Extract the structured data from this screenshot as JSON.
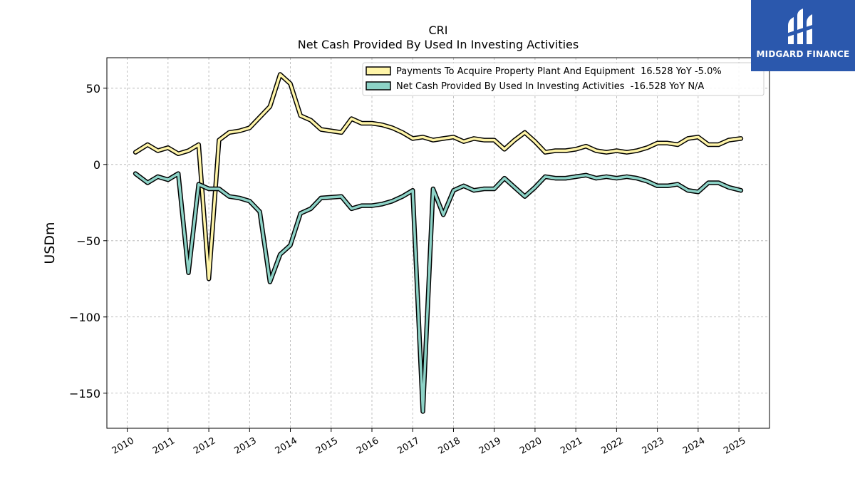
{
  "chart_data": {
    "type": "line",
    "title": "CRI",
    "subtitle": "Net Cash Provided By Used In Investing Activities",
    "ylabel": "USDm",
    "xlabel": "",
    "xlim": [
      2009.5,
      2025.75
    ],
    "ylim": [
      -173,
      70
    ],
    "yticks": [
      50,
      0,
      -50,
      -100,
      -150
    ],
    "ytick_labels": [
      "50",
      "0",
      "−50",
      "−100",
      "−150"
    ],
    "xticks": [
      "2010",
      "2011",
      "2012",
      "2013",
      "2014",
      "2015",
      "2016",
      "2017",
      "2018",
      "2019",
      "2020",
      "2021",
      "2022",
      "2023",
      "2024",
      "2025"
    ],
    "grid": true,
    "legend_position": "top-right",
    "series": [
      {
        "name": "Payments To Acquire Property Plant And Equipment  16.528 YoY -5.0%",
        "color": "#fff5a8",
        "points": [
          [
            2010.2,
            8
          ],
          [
            2010.5,
            13
          ],
          [
            2010.75,
            9
          ],
          [
            2011.0,
            11
          ],
          [
            2011.25,
            7
          ],
          [
            2011.5,
            9
          ],
          [
            2011.75,
            13
          ],
          [
            2012.0,
            -75
          ],
          [
            2012.25,
            16
          ],
          [
            2012.5,
            21
          ],
          [
            2012.75,
            22
          ],
          [
            2013.0,
            24
          ],
          [
            2013.5,
            38
          ],
          [
            2013.75,
            59
          ],
          [
            2014.0,
            53
          ],
          [
            2014.25,
            32
          ],
          [
            2014.5,
            29
          ],
          [
            2014.75,
            23
          ],
          [
            2015.25,
            21
          ],
          [
            2015.5,
            30
          ],
          [
            2015.75,
            27
          ],
          [
            2016.0,
            27
          ],
          [
            2016.25,
            26
          ],
          [
            2016.5,
            24
          ],
          [
            2016.75,
            21
          ],
          [
            2017.0,
            17
          ],
          [
            2017.25,
            18
          ],
          [
            2017.5,
            16
          ],
          [
            2017.75,
            17
          ],
          [
            2018.0,
            18
          ],
          [
            2018.25,
            15
          ],
          [
            2018.5,
            17
          ],
          [
            2018.75,
            16
          ],
          [
            2019.0,
            16
          ],
          [
            2019.25,
            10
          ],
          [
            2019.5,
            16
          ],
          [
            2019.75,
            21
          ],
          [
            2020.0,
            15
          ],
          [
            2020.25,
            8
          ],
          [
            2020.5,
            9
          ],
          [
            2020.75,
            9
          ],
          [
            2021.0,
            10
          ],
          [
            2021.25,
            12
          ],
          [
            2021.5,
            9
          ],
          [
            2021.75,
            8
          ],
          [
            2022.0,
            9
          ],
          [
            2022.25,
            8
          ],
          [
            2022.5,
            9
          ],
          [
            2022.75,
            11
          ],
          [
            2023.0,
            14
          ],
          [
            2023.25,
            14
          ],
          [
            2023.5,
            13
          ],
          [
            2023.75,
            17
          ],
          [
            2024.0,
            18
          ],
          [
            2024.25,
            13
          ],
          [
            2024.5,
            13
          ],
          [
            2024.75,
            16
          ],
          [
            2025.05,
            17
          ]
        ]
      },
      {
        "name": "Net Cash Provided By Used In Investing Activities  -16.528 YoY N/A",
        "color": "#8dd3c7",
        "points": [
          [
            2010.2,
            -6
          ],
          [
            2010.5,
            -12
          ],
          [
            2010.75,
            -8
          ],
          [
            2011.0,
            -10
          ],
          [
            2011.25,
            -6
          ],
          [
            2011.5,
            -71
          ],
          [
            2011.75,
            -13
          ],
          [
            2012.0,
            -16
          ],
          [
            2012.25,
            -16
          ],
          [
            2012.5,
            -21
          ],
          [
            2012.75,
            -22
          ],
          [
            2013.0,
            -24
          ],
          [
            2013.25,
            -31
          ],
          [
            2013.5,
            -77
          ],
          [
            2013.75,
            -59
          ],
          [
            2014.0,
            -53
          ],
          [
            2014.25,
            -32
          ],
          [
            2014.5,
            -29
          ],
          [
            2014.75,
            -22
          ],
          [
            2015.25,
            -21
          ],
          [
            2015.5,
            -29
          ],
          [
            2015.75,
            -27
          ],
          [
            2016.0,
            -27
          ],
          [
            2016.25,
            -26
          ],
          [
            2016.5,
            -24
          ],
          [
            2016.75,
            -21
          ],
          [
            2017.0,
            -17
          ],
          [
            2017.25,
            -162
          ],
          [
            2017.5,
            -16
          ],
          [
            2017.75,
            -33
          ],
          [
            2018.0,
            -17
          ],
          [
            2018.25,
            -14
          ],
          [
            2018.5,
            -17
          ],
          [
            2018.75,
            -16
          ],
          [
            2019.0,
            -16
          ],
          [
            2019.25,
            -9
          ],
          [
            2019.5,
            -15
          ],
          [
            2019.75,
            -21
          ],
          [
            2020.0,
            -15
          ],
          [
            2020.25,
            -8
          ],
          [
            2020.5,
            -9
          ],
          [
            2020.75,
            -9
          ],
          [
            2021.0,
            -8
          ],
          [
            2021.25,
            -7
          ],
          [
            2021.5,
            -9
          ],
          [
            2021.75,
            -8
          ],
          [
            2022.0,
            -9
          ],
          [
            2022.25,
            -8
          ],
          [
            2022.5,
            -9
          ],
          [
            2022.75,
            -11
          ],
          [
            2023.0,
            -14
          ],
          [
            2023.25,
            -14
          ],
          [
            2023.5,
            -13
          ],
          [
            2023.75,
            -17
          ],
          [
            2024.0,
            -18
          ],
          [
            2024.25,
            -12
          ],
          [
            2024.5,
            -12
          ],
          [
            2024.75,
            -15
          ],
          [
            2025.05,
            -17
          ]
        ]
      }
    ]
  },
  "brand": {
    "name": "MIDGARD FINANCE",
    "color": "#2b58ad"
  }
}
